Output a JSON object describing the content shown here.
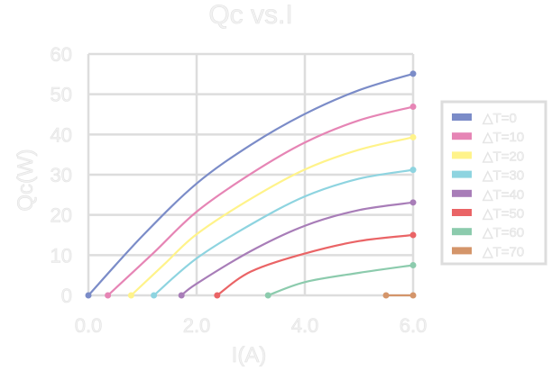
{
  "chart_data": {
    "type": "line",
    "title": "Qc vs.I",
    "xlabel": "I(A)",
    "ylabel": "Qc(W)",
    "xlim": [
      0,
      6
    ],
    "ylim": [
      0,
      60
    ],
    "xticks": [
      "0.0",
      "2.0",
      "4.0",
      "6.0"
    ],
    "yticks": [
      "0",
      "10",
      "20",
      "30",
      "40",
      "50",
      "60"
    ],
    "grid": true,
    "legend_position": "right",
    "series": [
      {
        "name": "△T=0",
        "color": "#7b8cc8",
        "x": [
          0,
          1,
          2,
          3,
          4,
          5,
          6
        ],
        "y": [
          0,
          14.8,
          27.8,
          37.4,
          45.1,
          51.0,
          55.1
        ]
      },
      {
        "name": "△T=10",
        "color": "#e685b5",
        "x": [
          0.36,
          1.2,
          2,
          3,
          4,
          5,
          6
        ],
        "y": [
          0,
          10.5,
          20.8,
          30.2,
          38.0,
          43.5,
          46.9
        ]
      },
      {
        "name": "△T=20",
        "color": "#fff38a",
        "x": [
          0.79,
          1.4,
          2,
          3,
          4,
          5,
          6
        ],
        "y": [
          0,
          7.7,
          15.2,
          24.0,
          31.3,
          36.2,
          39.3
        ]
      },
      {
        "name": "△T=30",
        "color": "#8ed4e0",
        "x": [
          1.21,
          2,
          3,
          4,
          5,
          6
        ],
        "y": [
          0,
          9.2,
          17.6,
          24.6,
          29.0,
          31.2
        ]
      },
      {
        "name": "△T=40",
        "color": "#a87db8",
        "x": [
          1.72,
          2,
          3,
          4,
          5,
          6
        ],
        "y": [
          0,
          2.9,
          11.0,
          17.3,
          21.2,
          23.1
        ]
      },
      {
        "name": "△T=50",
        "color": "#ea6466",
        "x": [
          2.38,
          3,
          4,
          5,
          6
        ],
        "y": [
          0,
          5.9,
          10.4,
          13.5,
          15.0
        ]
      },
      {
        "name": "△T=60",
        "color": "#8ccbad",
        "x": [
          3.32,
          4,
          5,
          6
        ],
        "y": [
          0,
          3.3,
          5.6,
          7.5
        ]
      },
      {
        "name": "△T=70",
        "color": "#d4956a",
        "x": [
          5.5,
          6
        ],
        "y": [
          0,
          0
        ]
      }
    ]
  }
}
